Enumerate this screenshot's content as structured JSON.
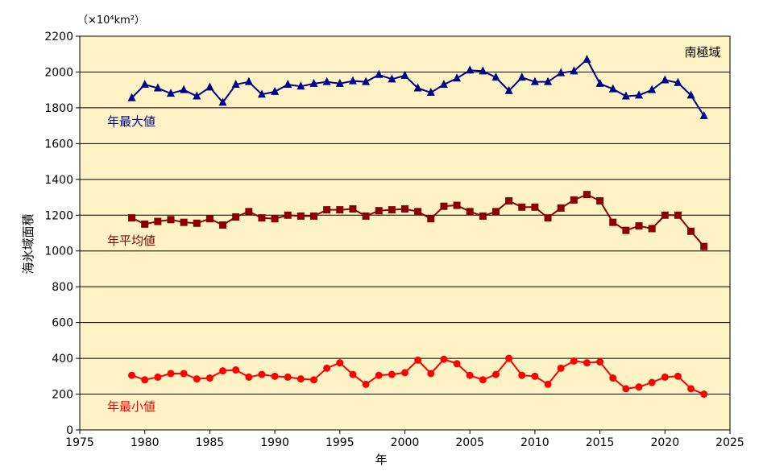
{
  "chart_data": {
    "type": "line",
    "unit_label": "（×10⁴km²）",
    "ylabel": "海氷域面積",
    "xlabel": "年",
    "region_label": "南極域",
    "xlim": [
      1975,
      2025
    ],
    "ylim": [
      0,
      2200
    ],
    "x_ticks": [
      1975,
      1980,
      1985,
      1990,
      1995,
      2000,
      2005,
      2010,
      2015,
      2020,
      2025
    ],
    "y_ticks": [
      0,
      200,
      400,
      600,
      800,
      1000,
      1200,
      1400,
      1600,
      1800,
      2000,
      2200
    ],
    "grid": "horizontal",
    "plot_background": "#fdf3c4",
    "x": [
      1979,
      1980,
      1981,
      1982,
      1983,
      1984,
      1985,
      1986,
      1987,
      1988,
      1989,
      1990,
      1991,
      1992,
      1993,
      1994,
      1995,
      1996,
      1997,
      1998,
      1999,
      2000,
      2001,
      2002,
      2003,
      2004,
      2005,
      2006,
      2007,
      2008,
      2009,
      2010,
      2011,
      2012,
      2013,
      2014,
      2015,
      2016,
      2017,
      2018,
      2019,
      2020,
      2021,
      2022,
      2023
    ],
    "series": [
      {
        "name": "年最大値",
        "color": "#00008b",
        "marker": "triangle",
        "values": [
          1855,
          1930,
          1910,
          1880,
          1900,
          1865,
          1915,
          1830,
          1930,
          1945,
          1875,
          1890,
          1930,
          1920,
          1935,
          1945,
          1935,
          1950,
          1945,
          1985,
          1960,
          1980,
          1910,
          1885,
          1930,
          1965,
          2010,
          2005,
          1970,
          1895,
          1970,
          1945,
          1945,
          1995,
          2005,
          2070,
          1935,
          1905,
          1865,
          1870,
          1900,
          1955,
          1940,
          1870,
          1755
        ]
      },
      {
        "name": "年平均値",
        "color": "#8b0000",
        "marker": "square",
        "values": [
          1185,
          1150,
          1165,
          1175,
          1160,
          1155,
          1180,
          1145,
          1190,
          1220,
          1185,
          1180,
          1200,
          1195,
          1195,
          1230,
          1230,
          1235,
          1195,
          1225,
          1230,
          1235,
          1220,
          1180,
          1250,
          1255,
          1220,
          1195,
          1220,
          1280,
          1245,
          1245,
          1185,
          1240,
          1285,
          1315,
          1280,
          1160,
          1115,
          1140,
          1125,
          1200,
          1200,
          1110,
          1025
        ]
      },
      {
        "name": "年最小値",
        "color": "#ff0000",
        "marker": "circle",
        "values": [
          305,
          280,
          295,
          315,
          315,
          285,
          290,
          330,
          335,
          295,
          310,
          300,
          295,
          285,
          280,
          345,
          375,
          310,
          255,
          305,
          310,
          320,
          390,
          315,
          395,
          370,
          305,
          280,
          310,
          400,
          305,
          300,
          255,
          345,
          385,
          375,
          380,
          290,
          230,
          240,
          265,
          295,
          300,
          230,
          200
        ]
      }
    ]
  }
}
